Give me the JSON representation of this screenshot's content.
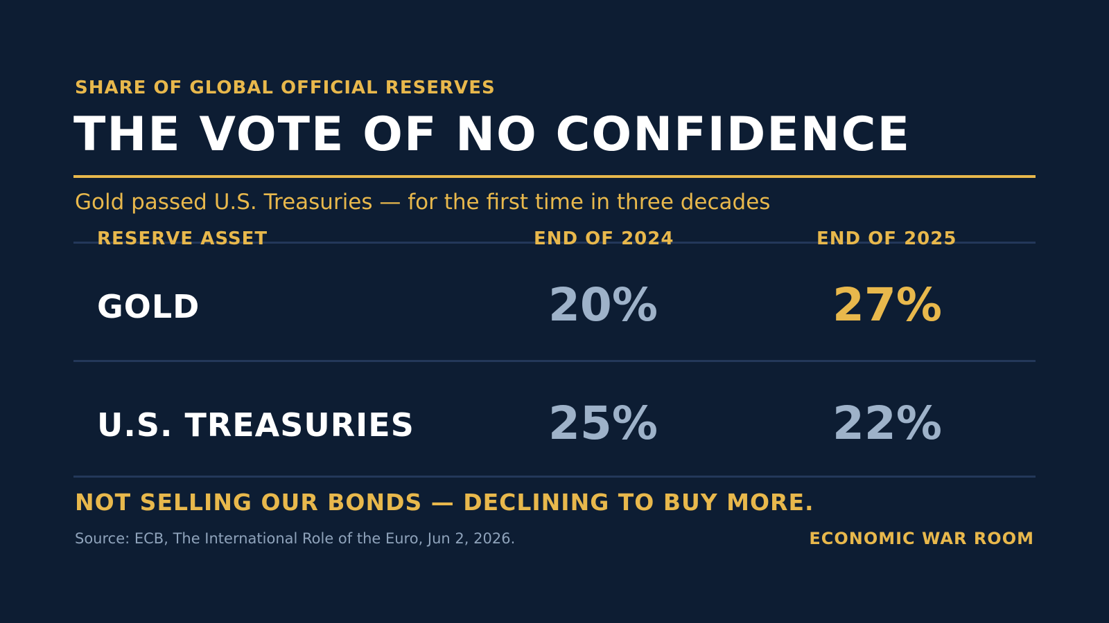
{
  "header": {
    "kicker": "SHARE OF GLOBAL OFFICIAL RESERVES",
    "title": "THE VOTE OF NO CONFIDENCE",
    "subtitle": "Gold passed U.S. Treasuries — for the first time in three decades"
  },
  "colors": {
    "background": "#0d1d33",
    "accent": "#e8b84c",
    "muted_value": "#9eb2c9",
    "text": "#ffffff"
  },
  "chart_data": {
    "type": "table",
    "title": "THE VOTE OF NO CONFIDENCE",
    "columns": [
      "RESERVE ASSET",
      "END OF 2024",
      "END OF 2025"
    ],
    "rows": [
      {
        "label": "GOLD",
        "values": [
          "20%",
          "27%"
        ],
        "highlight_col": 1
      },
      {
        "label": "U.S. TREASURIES",
        "values": [
          "25%",
          "22%"
        ],
        "highlight_col": null
      }
    ]
  },
  "footer": {
    "takeaway": "NOT SELLING OUR BONDS — DECLINING TO BUY MORE.",
    "source": "Source: ECB, The International Role of the Euro, Jun 2, 2026.",
    "brand": "ECONOMIC WAR ROOM"
  }
}
